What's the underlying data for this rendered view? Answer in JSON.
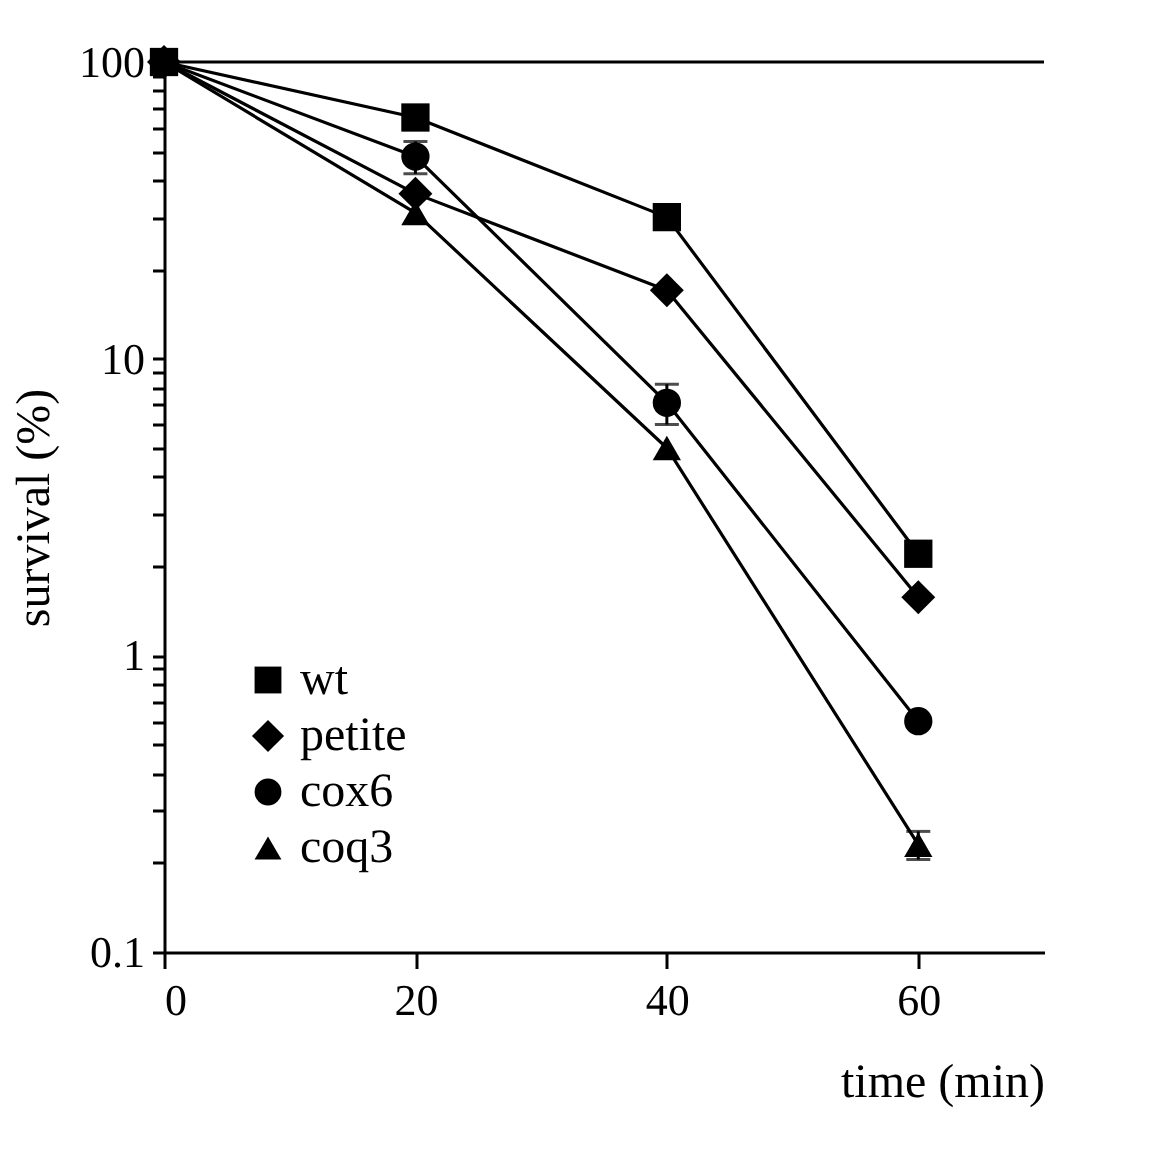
{
  "chart_data": {
    "type": "line",
    "xlabel": "time (min)",
    "ylabel": "survival (%)",
    "log": "y",
    "x": [
      0,
      20,
      40,
      60
    ],
    "xlim": [
      0,
      70
    ],
    "xticks": [
      0,
      20,
      40,
      60
    ],
    "ylim": [
      0.1,
      100
    ],
    "yticks": [
      0.1,
      {
        "value": 0.2,
        "label": null
      },
      {
        "value": 0.3,
        "label": null
      },
      {
        "value": 0.4,
        "label": null
      },
      {
        "value": 0.5,
        "label": null
      },
      {
        "value": 0.6,
        "label": null
      },
      {
        "value": 0.7,
        "label": null
      },
      {
        "value": 0.8,
        "label": null
      },
      {
        "value": 0.9,
        "label": null
      },
      1,
      {
        "value": 2,
        "label": null
      },
      {
        "value": 3,
        "label": null
      },
      {
        "value": 4,
        "label": null
      },
      {
        "value": 5,
        "label": null
      },
      {
        "value": 6,
        "label": null
      },
      {
        "value": 7,
        "label": null
      },
      {
        "value": 8,
        "label": null
      },
      {
        "value": 9,
        "label": null
      },
      10,
      {
        "value": 20,
        "label": null
      },
      {
        "value": 30,
        "label": null
      },
      {
        "value": 40,
        "label": null
      },
      {
        "value": 50,
        "label": null
      },
      {
        "value": 60,
        "label": null
      },
      {
        "value": 70,
        "label": null
      },
      {
        "value": 80,
        "label": null
      },
      {
        "value": 90,
        "label": null
      },
      100
    ],
    "grid": false,
    "legend": "bottom left",
    "line_style": "solid",
    "series": [
      {
        "name": "wt",
        "color": "#000000",
        "marker": "square",
        "values": [
          100,
          65,
          30,
          2.2
        ]
      },
      {
        "name": "petite",
        "color": "#000000",
        "marker": "diamond",
        "values": [
          100,
          36,
          17,
          1.57
        ]
      },
      {
        "name": "cox6",
        "color": "#000000",
        "marker": "circle",
        "values": [
          100,
          48,
          7.1,
          0.6
        ],
        "errors": [
          null,
          6,
          1.1,
          null
        ]
      },
      {
        "name": "coq3",
        "color": "#000000",
        "marker": "triangle",
        "values": [
          100,
          31,
          5.0,
          0.23
        ],
        "errors": [
          null,
          null,
          null,
          0.025
        ]
      }
    ]
  }
}
